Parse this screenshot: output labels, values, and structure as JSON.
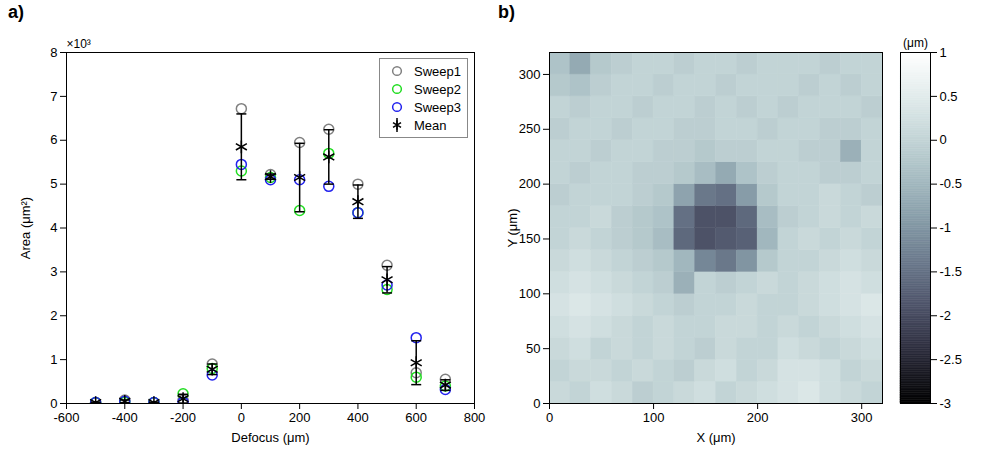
{
  "chart_data": [
    {
      "type": "scatter",
      "panel": "a)",
      "xlabel": "Defocus (μm)",
      "ylabel": "Area (μm²)",
      "annotations": [
        "×10³"
      ],
      "x": [
        -500,
        -400,
        -300,
        -200,
        -100,
        0,
        100,
        200,
        300,
        400,
        500,
        600,
        700
      ],
      "xlim": [
        -600,
        800
      ],
      "xticks": [
        -600,
        -400,
        -200,
        0,
        200,
        400,
        600,
        800
      ],
      "ylim": [
        0,
        8
      ],
      "yticks": [
        0,
        1,
        2,
        3,
        4,
        5,
        6,
        7,
        8
      ],
      "grid": false,
      "legend": "top-right",
      "series": [
        {
          "name": "Sweep1",
          "color": "#808080",
          "marker": "circle",
          "values": [
            0.02,
            0.08,
            0.02,
            0.08,
            0.9,
            6.72,
            5.22,
            5.95,
            6.25,
            5.0,
            3.15,
            0.7,
            0.55
          ]
        },
        {
          "name": "Sweep2",
          "color": "#22dd22",
          "marker": "circle",
          "values": [
            0.02,
            0.03,
            0.02,
            0.22,
            0.8,
            5.3,
            5.15,
            4.4,
            5.7,
            4.35,
            2.6,
            0.6,
            0.4
          ]
        },
        {
          "name": "Sweep3",
          "color": "#2222ee",
          "marker": "circle",
          "values": [
            0.02,
            0.05,
            0.02,
            0.03,
            0.65,
            5.45,
            5.1,
            5.1,
            4.95,
            4.35,
            2.7,
            1.5,
            0.32
          ]
        },
        {
          "name": "Mean",
          "color": "#000000",
          "marker": "asterisk",
          "values": [
            0.02,
            0.05,
            0.02,
            0.11,
            0.78,
            5.85,
            5.17,
            5.15,
            5.62,
            4.6,
            2.82,
            0.93,
            0.42
          ],
          "error": [
            0.01,
            0.03,
            0.01,
            0.1,
            0.12,
            0.75,
            0.06,
            0.78,
            0.62,
            0.38,
            0.3,
            0.5,
            0.12
          ]
        }
      ]
    },
    {
      "type": "heatmap",
      "panel": "b)",
      "xlabel": "X (μm)",
      "ylabel": "Y (μm)",
      "xlim": [
        0,
        320
      ],
      "xticks": [
        0,
        100,
        200,
        300
      ],
      "ylim": [
        0,
        320
      ],
      "yticks": [
        0,
        50,
        100,
        150,
        200,
        250,
        300
      ],
      "x": [
        10,
        30,
        50,
        70,
        90,
        110,
        130,
        150,
        170,
        190,
        210,
        230,
        250,
        270,
        290,
        310
      ],
      "y": [
        10,
        30,
        50,
        70,
        90,
        110,
        130,
        150,
        170,
        190,
        210,
        230,
        250,
        270,
        290,
        310
      ],
      "z": [
        [
          0.1,
          0.0,
          0.2,
          0.1,
          -0.1,
          0.0,
          0.1,
          0.2,
          0.0,
          0.1,
          0.2,
          0.3,
          0.4,
          0.2,
          0.1,
          0.0
        ],
        [
          0.0,
          0.1,
          0.1,
          0.0,
          0.1,
          0.0,
          -0.1,
          0.1,
          0.2,
          0.0,
          0.1,
          0.3,
          0.3,
          0.2,
          0.0,
          0.1
        ],
        [
          0.1,
          0.2,
          0.0,
          0.1,
          0.0,
          0.1,
          0.0,
          -0.1,
          0.1,
          0.0,
          0.0,
          0.2,
          0.1,
          0.0,
          0.1,
          0.2
        ],
        [
          0.2,
          0.3,
          0.2,
          0.1,
          0.0,
          0.1,
          0.0,
          0.0,
          0.1,
          0.1,
          0.0,
          0.1,
          0.0,
          0.1,
          0.2,
          0.3
        ],
        [
          0.3,
          0.4,
          0.3,
          0.2,
          0.1,
          0.0,
          -0.1,
          0.0,
          0.0,
          0.1,
          0.0,
          0.0,
          0.1,
          0.2,
          0.3,
          0.4
        ],
        [
          0.2,
          0.3,
          0.2,
          0.1,
          0.0,
          -0.1,
          -0.6,
          0.0,
          -0.1,
          0.0,
          0.1,
          0.0,
          0.1,
          0.2,
          0.3,
          0.2
        ],
        [
          0.1,
          0.2,
          0.1,
          0.0,
          -0.1,
          -0.2,
          -0.5,
          -1.2,
          -1.4,
          -1.0,
          -0.2,
          0.0,
          0.0,
          0.1,
          0.2,
          0.1
        ],
        [
          0.0,
          0.1,
          0.0,
          -0.1,
          -0.2,
          -0.4,
          -1.6,
          -1.9,
          -1.8,
          -1.7,
          -0.5,
          0.0,
          0.1,
          0.0,
          0.1,
          0.0
        ],
        [
          0.0,
          0.0,
          0.1,
          -0.1,
          -0.2,
          -0.3,
          -1.5,
          -1.9,
          -1.9,
          -1.6,
          -0.4,
          -0.1,
          0.0,
          0.1,
          0.0,
          0.1
        ],
        [
          -0.1,
          0.0,
          0.0,
          0.0,
          -0.1,
          -0.2,
          -0.8,
          -1.4,
          -1.5,
          -0.9,
          -0.2,
          0.0,
          0.0,
          0.1,
          0.0,
          -0.1
        ],
        [
          0.0,
          -0.1,
          0.0,
          0.0,
          -0.1,
          -0.1,
          -0.2,
          -0.4,
          -0.7,
          -0.3,
          -0.1,
          0.0,
          0.0,
          -0.1,
          -0.1,
          0.0
        ],
        [
          0.0,
          0.0,
          -0.1,
          0.0,
          0.0,
          -0.1,
          -0.1,
          -0.2,
          -0.1,
          -0.1,
          0.0,
          0.0,
          -0.1,
          -0.1,
          -0.6,
          0.0
        ],
        [
          -0.1,
          0.0,
          0.0,
          -0.1,
          0.0,
          0.0,
          -0.1,
          -0.1,
          0.0,
          0.0,
          -0.1,
          0.0,
          0.0,
          -0.1,
          -0.1,
          0.0
        ],
        [
          0.0,
          -0.1,
          0.0,
          0.0,
          -0.1,
          0.0,
          0.0,
          -0.1,
          0.0,
          -0.1,
          0.0,
          -0.1,
          0.0,
          0.0,
          0.0,
          -0.1
        ],
        [
          -0.2,
          -0.3,
          -0.1,
          0.0,
          0.0,
          -0.1,
          0.0,
          0.0,
          -0.1,
          0.0,
          0.0,
          0.0,
          -0.1,
          0.0,
          -0.1,
          0.0
        ],
        [
          -0.3,
          -0.7,
          -0.2,
          -0.1,
          0.0,
          0.0,
          -0.1,
          0.0,
          0.0,
          -0.1,
          0.0,
          0.0,
          0.0,
          -0.1,
          0.0,
          0.0
        ]
      ],
      "colorbar": {
        "label": "(μm)",
        "range": [
          -3,
          1
        ],
        "ticks": [
          1,
          0.5,
          0,
          -0.5,
          -1,
          -1.5,
          -2,
          -2.5,
          -3
        ]
      }
    }
  ]
}
